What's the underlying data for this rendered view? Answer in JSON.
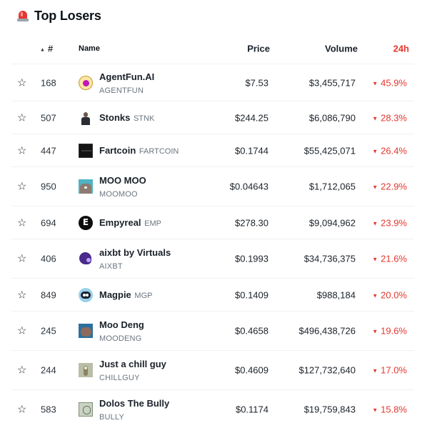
{
  "header": {
    "icon": "siren-icon",
    "title": "Top Losers"
  },
  "columns": {
    "rank": "#",
    "sort_indicator": "▲",
    "name": "Name",
    "price": "Price",
    "volume": "Volume",
    "change": "24h"
  },
  "accent_negative": "#e5372f",
  "rows": [
    {
      "rank": "168",
      "name": "AgentFun.AI",
      "symbol": "AGENTFUN",
      "price": "$7.53",
      "volume": "$3,455,717",
      "change": "45.9%",
      "symbol_position": "below"
    },
    {
      "rank": "507",
      "name": "Stonks",
      "symbol": "STNK",
      "price": "$244.25",
      "volume": "$6,086,790",
      "change": "28.3%",
      "symbol_position": "inline"
    },
    {
      "rank": "447",
      "name": "Fartcoin",
      "symbol": "FARTCOIN",
      "price": "$0.1744",
      "volume": "$55,425,071",
      "change": "26.4%",
      "symbol_position": "inline"
    },
    {
      "rank": "950",
      "name": "MOO MOO",
      "symbol": "MOOMOO",
      "price": "$0.04643",
      "volume": "$1,712,065",
      "change": "22.9%",
      "symbol_position": "below"
    },
    {
      "rank": "694",
      "name": "Empyreal",
      "symbol": "EMP",
      "price": "$278.30",
      "volume": "$9,094,962",
      "change": "23.9%",
      "symbol_position": "inline"
    },
    {
      "rank": "406",
      "name": "aixbt by Virtuals",
      "symbol": "AIXBT",
      "price": "$0.1993",
      "volume": "$34,736,375",
      "change": "21.6%",
      "symbol_position": "below"
    },
    {
      "rank": "849",
      "name": "Magpie",
      "symbol": "MGP",
      "price": "$0.1409",
      "volume": "$988,184",
      "change": "20.0%",
      "symbol_position": "inline"
    },
    {
      "rank": "245",
      "name": "Moo Deng",
      "symbol": "MOODENG",
      "price": "$0.4658",
      "volume": "$496,438,726",
      "change": "19.6%",
      "symbol_position": "below"
    },
    {
      "rank": "244",
      "name": "Just a chill guy",
      "symbol": "CHILLGUY",
      "price": "$0.4609",
      "volume": "$127,732,640",
      "change": "17.0%",
      "symbol_position": "below"
    },
    {
      "rank": "583",
      "name": "Dolos The Bully",
      "symbol": "BULLY",
      "price": "$0.1174",
      "volume": "$19,759,843",
      "change": "15.8%",
      "symbol_position": "below"
    }
  ]
}
